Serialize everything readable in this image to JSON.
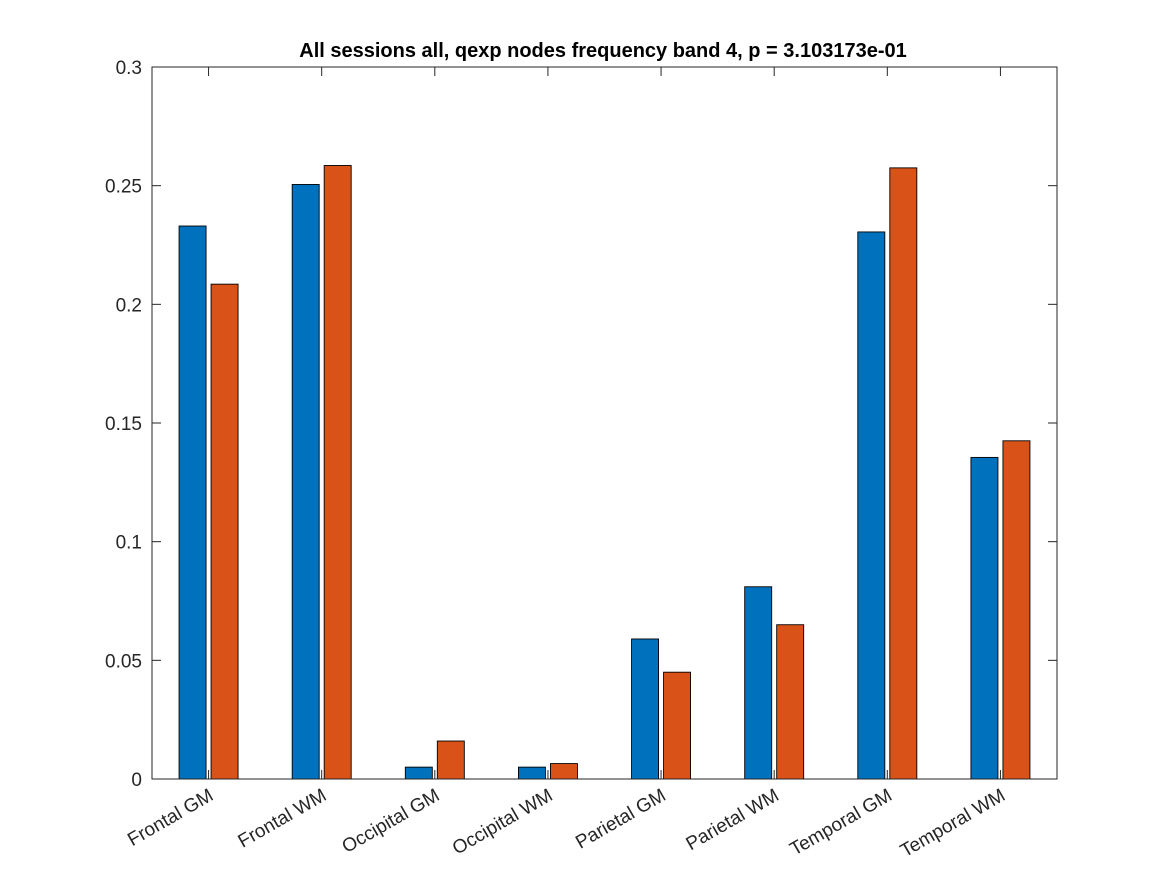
{
  "chart_data": {
    "type": "bar",
    "title": "All sessions all, qexp nodes frequency band 4, p = 3.103173e-01",
    "xlabel": "",
    "ylabel": "",
    "categories": [
      "Frontal GM",
      "Frontal WM",
      "Occipital GM",
      "Occipital WM",
      "Parietal GM",
      "Parietal WM",
      "Temporal GM",
      "Temporal WM"
    ],
    "series": [
      {
        "values": [
          0.233,
          0.2505,
          0.005,
          0.005,
          0.059,
          0.081,
          0.2305,
          0.1355
        ],
        "color": "#0072BD"
      },
      {
        "values": [
          0.2085,
          0.2585,
          0.016,
          0.0065,
          0.045,
          0.065,
          0.2575,
          0.1425
        ],
        "color": "#D95319"
      }
    ],
    "ylim": [
      0,
      0.3
    ],
    "yticks": [
      0,
      0.05,
      0.1,
      0.15,
      0.2,
      0.25,
      0.3
    ],
    "yticklabels": [
      "0",
      "0.05",
      "0.1",
      "0.15",
      "0.2",
      "0.25",
      "0.3"
    ],
    "grid": false,
    "legend": "none",
    "box": true
  }
}
